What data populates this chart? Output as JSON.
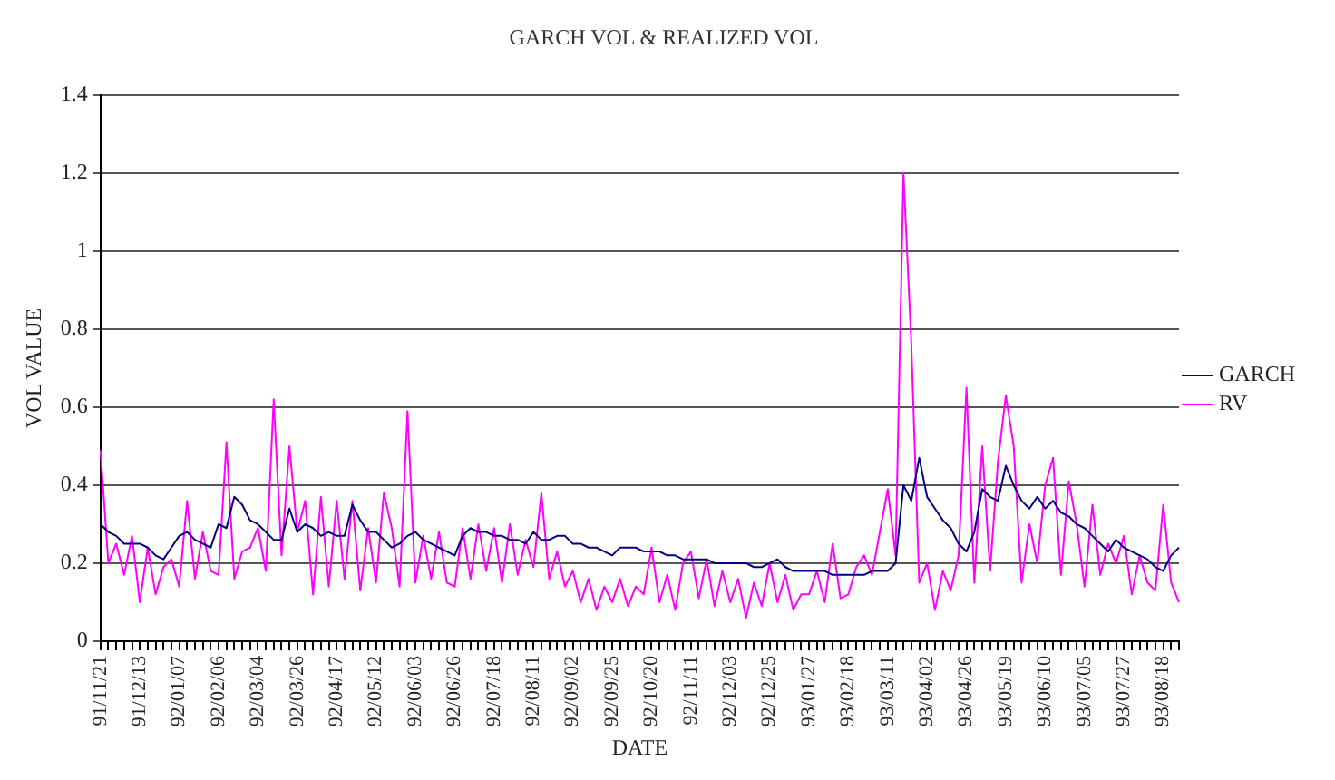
{
  "chart_data": {
    "type": "line",
    "title": "GARCH VOL & REALIZED VOL",
    "xlabel": "DATE",
    "ylabel": "VOL VALUE",
    "categories": [
      "91/11/21",
      null,
      null,
      null,
      null,
      "91/12/13",
      null,
      null,
      null,
      null,
      "92/01/07",
      null,
      null,
      null,
      null,
      "92/02/06",
      null,
      null,
      null,
      null,
      "92/03/04",
      null,
      null,
      null,
      null,
      "92/03/26",
      null,
      null,
      null,
      null,
      "92/04/17",
      null,
      null,
      null,
      null,
      "92/05/12",
      null,
      null,
      null,
      null,
      "92/06/03",
      null,
      null,
      null,
      null,
      "92/06/26",
      null,
      null,
      null,
      null,
      "92/07/18",
      null,
      null,
      null,
      null,
      "92/08/11",
      null,
      null,
      null,
      null,
      "92/09/02",
      null,
      null,
      null,
      null,
      "92/09/25",
      null,
      null,
      null,
      null,
      "92/10/20",
      null,
      null,
      null,
      null,
      "92/11/11",
      null,
      null,
      null,
      null,
      "92/12/03",
      null,
      null,
      null,
      null,
      "92/12/25",
      null,
      null,
      null,
      null,
      "93/01/27",
      null,
      null,
      null,
      null,
      "93/02/18",
      null,
      null,
      null,
      null,
      "93/03/11",
      null,
      null,
      null,
      null,
      "93/04/02",
      null,
      null,
      null,
      null,
      "93/04/26",
      null,
      null,
      null,
      null,
      "93/05/19",
      null,
      null,
      null,
      null,
      "93/06/10",
      null,
      null,
      null,
      null,
      "93/07/05",
      null,
      null,
      null,
      null,
      "93/07/27",
      null,
      null,
      null,
      null,
      "93/08/18",
      null,
      null
    ],
    "series": [
      {
        "name": "GARCH",
        "color": "#000080",
        "values": [
          0.3,
          0.28,
          0.27,
          0.25,
          0.25,
          0.25,
          0.24,
          0.22,
          0.21,
          0.24,
          0.27,
          0.28,
          0.26,
          0.25,
          0.24,
          0.3,
          0.29,
          0.37,
          0.35,
          0.31,
          0.3,
          0.28,
          0.26,
          0.26,
          0.34,
          0.28,
          0.3,
          0.29,
          0.27,
          0.28,
          0.27,
          0.27,
          0.35,
          0.31,
          0.28,
          0.28,
          0.26,
          0.24,
          0.25,
          0.27,
          0.28,
          0.26,
          0.25,
          0.24,
          0.23,
          0.22,
          0.27,
          0.29,
          0.28,
          0.28,
          0.27,
          0.27,
          0.26,
          0.26,
          0.25,
          0.28,
          0.26,
          0.26,
          0.27,
          0.27,
          0.25,
          0.25,
          0.24,
          0.24,
          0.23,
          0.22,
          0.24,
          0.24,
          0.24,
          0.23,
          0.23,
          0.23,
          0.22,
          0.22,
          0.21,
          0.21,
          0.21,
          0.21,
          0.2,
          0.2,
          0.2,
          0.2,
          0.2,
          0.19,
          0.19,
          0.2,
          0.21,
          0.19,
          0.18,
          0.18,
          0.18,
          0.18,
          0.18,
          0.17,
          0.17,
          0.17,
          0.17,
          0.17,
          0.18,
          0.18,
          0.18,
          0.2,
          0.4,
          0.36,
          0.47,
          0.37,
          0.34,
          0.31,
          0.29,
          0.25,
          0.23,
          0.28,
          0.39,
          0.37,
          0.36,
          0.45,
          0.4,
          0.36,
          0.34,
          0.37,
          0.34,
          0.36,
          0.33,
          0.32,
          0.3,
          0.29,
          0.27,
          0.25,
          0.23,
          0.26,
          0.24,
          0.23,
          0.22,
          0.21,
          0.19,
          0.18,
          0.22,
          0.24
        ]
      },
      {
        "name": "RV",
        "color": "#ff00ff",
        "values": [
          0.49,
          0.2,
          0.25,
          0.17,
          0.27,
          0.1,
          0.24,
          0.12,
          0.19,
          0.21,
          0.14,
          0.36,
          0.16,
          0.28,
          0.18,
          0.17,
          0.51,
          0.16,
          0.23,
          0.24,
          0.29,
          0.18,
          0.62,
          0.22,
          0.5,
          0.28,
          0.36,
          0.12,
          0.37,
          0.14,
          0.36,
          0.16,
          0.36,
          0.13,
          0.29,
          0.15,
          0.38,
          0.29,
          0.14,
          0.59,
          0.15,
          0.27,
          0.16,
          0.28,
          0.15,
          0.14,
          0.29,
          0.16,
          0.3,
          0.18,
          0.29,
          0.15,
          0.3,
          0.17,
          0.26,
          0.19,
          0.38,
          0.16,
          0.23,
          0.14,
          0.18,
          0.1,
          0.16,
          0.08,
          0.14,
          0.1,
          0.16,
          0.09,
          0.14,
          0.12,
          0.24,
          0.1,
          0.17,
          0.08,
          0.2,
          0.23,
          0.11,
          0.21,
          0.09,
          0.18,
          0.1,
          0.16,
          0.06,
          0.15,
          0.09,
          0.2,
          0.1,
          0.17,
          0.08,
          0.12,
          0.12,
          0.18,
          0.1,
          0.25,
          0.11,
          0.12,
          0.19,
          0.22,
          0.17,
          0.28,
          0.39,
          0.22,
          1.2,
          0.76,
          0.15,
          0.2,
          0.08,
          0.18,
          0.13,
          0.22,
          0.65,
          0.15,
          0.5,
          0.18,
          0.46,
          0.63,
          0.5,
          0.15,
          0.3,
          0.2,
          0.4,
          0.47,
          0.17,
          0.41,
          0.3,
          0.14,
          0.35,
          0.17,
          0.25,
          0.2,
          0.27,
          0.12,
          0.22,
          0.15,
          0.13,
          0.35,
          0.15,
          0.1
        ]
      }
    ],
    "ylim": [
      0,
      1.4
    ],
    "yticks": [
      0,
      0.2,
      0.4,
      0.6,
      0.8,
      1,
      1.2,
      1.4
    ],
    "grid": "y",
    "legend": "right",
    "marker": "none",
    "line_style": "solid"
  }
}
